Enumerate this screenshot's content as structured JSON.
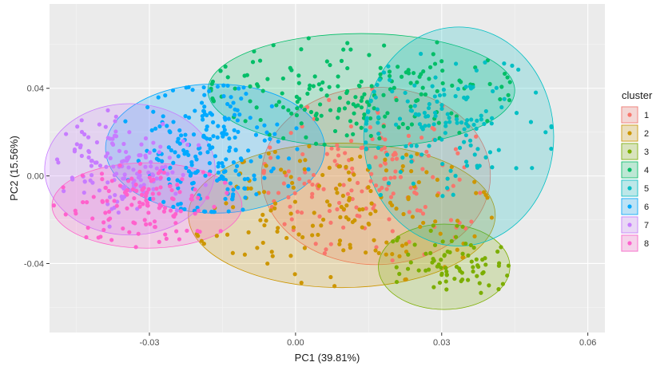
{
  "chart_data": {
    "type": "scatter",
    "title": "",
    "xlabel": "PC1 (39.81%)",
    "ylabel": "PC2 (15.56%)",
    "xlim": [
      -0.0505,
      0.0635
    ],
    "ylim": [
      -0.0715,
      0.0785
    ],
    "xticks": [
      -0.03,
      0.0,
      0.03,
      0.06
    ],
    "xtick_labels": [
      "-0.03",
      "0.00",
      "0.03",
      "0.06"
    ],
    "yticks": [
      -0.04,
      0.0,
      0.04
    ],
    "ytick_labels": [
      "-0.04",
      "0.00",
      "0.04"
    ],
    "grid": true,
    "legend_position": "right",
    "legend_title": "cluster",
    "series": [
      {
        "name": "1",
        "color": "#F8766D",
        "center": [
          0.015,
          -0.002
        ],
        "radius": [
          0.011,
          0.017
        ],
        "ellipse": {
          "cx": 0.0165,
          "cy": 0.0,
          "rx": 0.0235,
          "ry": 0.0405
        },
        "count": 170
      },
      {
        "name": "2",
        "color": "#CD9600",
        "center": [
          0.009,
          -0.016
        ],
        "radius": [
          0.014,
          0.015
        ],
        "ellipse": {
          "cx": 0.0095,
          "cy": -0.018,
          "rx": 0.0315,
          "ry": 0.033
        },
        "count": 160
      },
      {
        "name": "3",
        "color": "#7CAE00",
        "center": [
          0.032,
          -0.04
        ],
        "radius": [
          0.006,
          0.008
        ],
        "ellipse": {
          "cx": 0.0305,
          "cy": -0.0415,
          "rx": 0.0135,
          "ry": 0.0195
        },
        "count": 80
      },
      {
        "name": "4",
        "color": "#00BE67",
        "center": [
          0.012,
          0.036
        ],
        "radius": [
          0.016,
          0.011
        ],
        "ellipse": {
          "cx": 0.0135,
          "cy": 0.039,
          "rx": 0.0315,
          "ry": 0.026
        },
        "count": 190
      },
      {
        "name": "5",
        "color": "#00BFC4",
        "center": [
          0.03,
          0.022
        ],
        "radius": [
          0.011,
          0.015
        ],
        "ellipse": {
          "cx": 0.0335,
          "cy": 0.018,
          "rx": 0.0195,
          "ry": 0.05
        },
        "count": 150
      },
      {
        "name": "6",
        "color": "#00A9FF",
        "center": [
          -0.017,
          0.012
        ],
        "radius": [
          0.007,
          0.016
        ],
        "ellipse": {
          "cx": -0.0165,
          "cy": 0.0125,
          "rx": 0.0225,
          "ry": 0.0295
        },
        "count": 220
      },
      {
        "name": "7",
        "color": "#C77CFF",
        "center": [
          -0.036,
          0.005
        ],
        "radius": [
          0.006,
          0.011
        ],
        "ellipse": {
          "cx": -0.034,
          "cy": 0.003,
          "rx": 0.0175,
          "ry": 0.03
        },
        "count": 140
      },
      {
        "name": "8",
        "color": "#FF61CC",
        "center": [
          -0.031,
          -0.013
        ],
        "radius": [
          0.007,
          0.008
        ],
        "ellipse": {
          "cx": -0.0305,
          "cy": -0.0135,
          "rx": 0.0195,
          "ry": 0.0195
        },
        "count": 130
      }
    ]
  }
}
